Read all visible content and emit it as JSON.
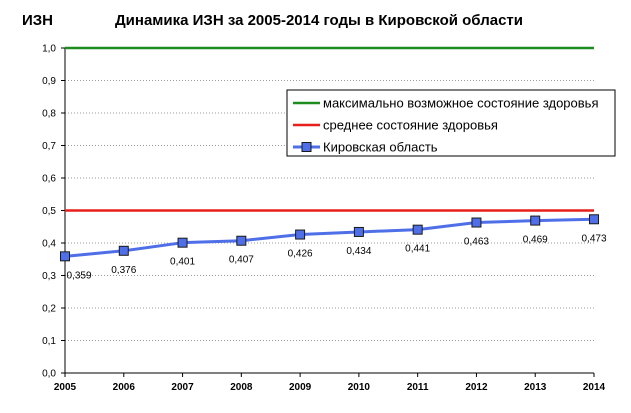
{
  "chart_data": {
    "type": "line",
    "title": "Динамика ИЗН за 2005-2014 годы в Кировской области",
    "ylabel": "ИЗН",
    "xlabel": "",
    "ylim": [
      0,
      1.0
    ],
    "ytick_labels": [
      "0,0",
      "0,1",
      "0,2",
      "0,3",
      "0,4",
      "0,5",
      "0,6",
      "0,7",
      "0,8",
      "0,9",
      "1,0"
    ],
    "categories": [
      "2005",
      "2006",
      "2007",
      "2008",
      "2009",
      "2010",
      "2011",
      "2012",
      "2013",
      "2014"
    ],
    "grid": "horizontal-dotted",
    "legend_position": "right",
    "series": [
      {
        "name": "максимально возможное состояние здоровья",
        "color": "#1e8c1e",
        "values": [
          1.0,
          1.0,
          1.0,
          1.0,
          1.0,
          1.0,
          1.0,
          1.0,
          1.0,
          1.0
        ]
      },
      {
        "name": "среднее состояние здоровья",
        "color": "#e8201c",
        "values": [
          0.5,
          0.5,
          0.5,
          0.5,
          0.5,
          0.5,
          0.5,
          0.5,
          0.5,
          0.5
        ]
      },
      {
        "name": "Кировская область",
        "color": "#4f6fe8",
        "marker": "square",
        "values": [
          0.359,
          0.376,
          0.401,
          0.407,
          0.426,
          0.434,
          0.441,
          0.463,
          0.469,
          0.473
        ],
        "data_labels": [
          "0,359",
          "0,376",
          "0,401",
          "0,407",
          "0,426",
          "0,434",
          "0,441",
          "0,463",
          "0,469",
          "0,473"
        ]
      }
    ]
  }
}
